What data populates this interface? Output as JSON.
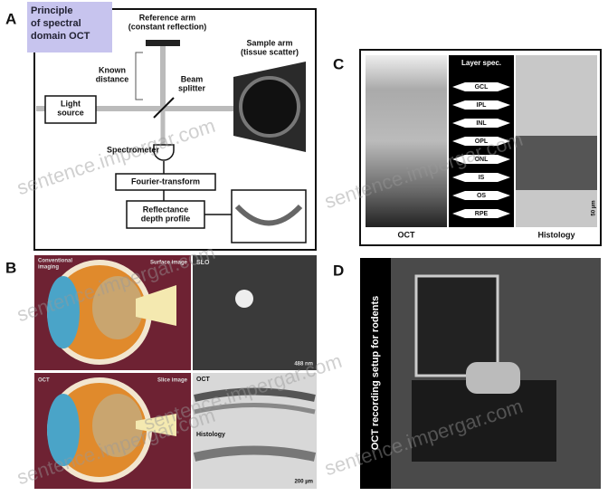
{
  "panel_a": {
    "letter": "A",
    "title": [
      "Principle",
      "of spectral",
      "domain OCT"
    ],
    "reference_arm": [
      "Reference arm",
      "(constant reflection)"
    ],
    "sample_arm": [
      "Sample arm",
      "(tissue scatter)"
    ],
    "known_distance": [
      "Known",
      "distance"
    ],
    "beam_splitter": [
      "Beam",
      "splitter"
    ],
    "light_source": [
      "Light",
      "source"
    ],
    "spectrometer": "Spectrometer",
    "fourier": "Fourier-transform",
    "reflectance": [
      "Reflectance",
      "depth profile"
    ]
  },
  "panel_b": {
    "letter": "B",
    "conventional": [
      "Conventional",
      "imaging"
    ],
    "surface_image": "Surface image",
    "slo": "SLO",
    "slo_scale": "488 nm",
    "oct": "OCT",
    "slice_image": "Slice image",
    "oct_small": "OCT",
    "histology": "Histology",
    "scale": "200 µm"
  },
  "panel_c": {
    "letter": "C",
    "layer_spec": "Layer spec.",
    "layers": [
      "GCL",
      "IPL",
      "INL",
      "OPL",
      "ONL",
      "IS",
      "OS",
      "RPE"
    ],
    "oct": "OCT",
    "histology": "Histology",
    "scale": "50 µm"
  },
  "panel_d": {
    "letter": "D",
    "caption": "OCT recording setup for rodents"
  },
  "watermark": "sentence.impergar.com"
}
